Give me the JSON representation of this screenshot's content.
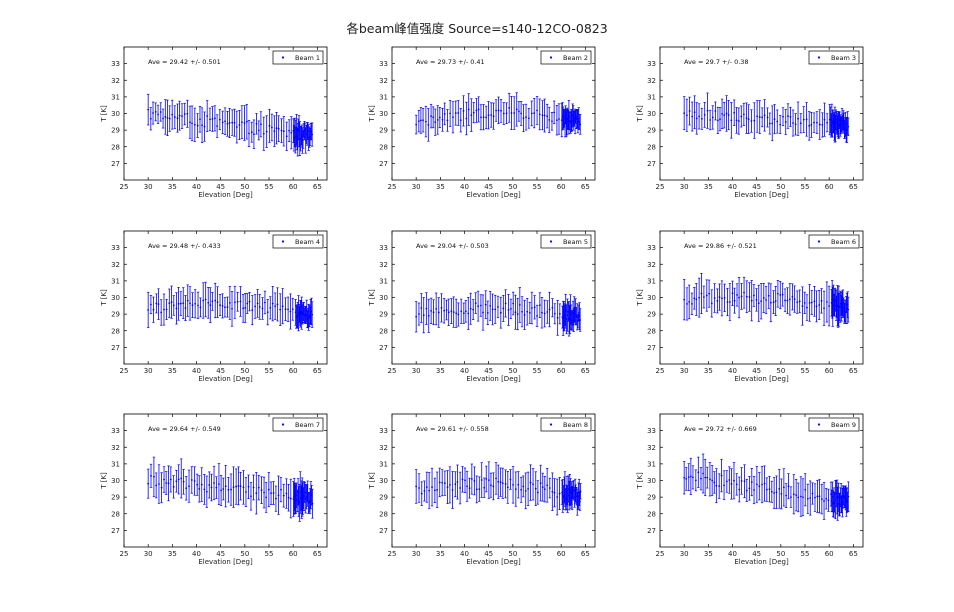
{
  "figure": {
    "title": "各beam峰值强度 Source=s140-12CO-0823"
  },
  "colors": {
    "series": "#0000ff",
    "axis": "#000000",
    "background": "#ffffff"
  },
  "chart_data": [
    {
      "type": "scatter",
      "series": [
        {
          "name": "Beam 1"
        }
      ],
      "annotation": "Ave = 29.42 +/- 0.501",
      "xlabel": "Elevation [Deg]",
      "ylabel": "T [K]",
      "xlim": [
        25,
        67
      ],
      "ylim": [
        26,
        34
      ],
      "xticks": [
        25,
        30,
        35,
        40,
        45,
        50,
        55,
        60,
        65
      ],
      "yticks": [
        27,
        28,
        29,
        30,
        31,
        32,
        33
      ],
      "grid": false,
      "legend": "top-right",
      "error_bars": true,
      "elevation_range": [
        30,
        64
      ],
      "start_mean": 30.0,
      "end_mean": 28.6,
      "bump": 0.0,
      "scatter": 0.35,
      "err": 0.9
    },
    {
      "type": "scatter",
      "series": [
        {
          "name": "Beam 2"
        }
      ],
      "annotation": "Ave = 29.73 +/- 0.41",
      "xlabel": "Elevation [Deg]",
      "ylabel": "T [K]",
      "xlim": [
        25,
        67
      ],
      "ylim": [
        26,
        34
      ],
      "xticks": [
        25,
        30,
        35,
        40,
        45,
        50,
        55,
        60,
        65
      ],
      "yticks": [
        27,
        28,
        29,
        30,
        31,
        32,
        33
      ],
      "grid": false,
      "legend": "top-right",
      "error_bars": true,
      "elevation_range": [
        30,
        64
      ],
      "start_mean": 29.4,
      "end_mean": 29.5,
      "bump": 0.6,
      "scatter": 0.3,
      "err": 0.85
    },
    {
      "type": "scatter",
      "series": [
        {
          "name": "Beam 3"
        }
      ],
      "annotation": "Ave = 29.7 +/- 0.38",
      "xlabel": "Elevation [Deg]",
      "ylabel": "T [K]",
      "xlim": [
        25,
        67
      ],
      "ylim": [
        26,
        34
      ],
      "xticks": [
        25,
        30,
        35,
        40,
        45,
        50,
        55,
        60,
        65
      ],
      "yticks": [
        27,
        28,
        29,
        30,
        31,
        32,
        33
      ],
      "grid": false,
      "legend": "top-right",
      "error_bars": true,
      "elevation_range": [
        30,
        64
      ],
      "start_mean": 30.0,
      "end_mean": 29.3,
      "bump": 0.0,
      "scatter": 0.3,
      "err": 0.9
    },
    {
      "type": "scatter",
      "series": [
        {
          "name": "Beam 4"
        }
      ],
      "annotation": "Ave = 29.48 +/- 0.433",
      "xlabel": "Elevation [Deg]",
      "ylabel": "T [K]",
      "xlim": [
        25,
        67
      ],
      "ylim": [
        26,
        34
      ],
      "xticks": [
        25,
        30,
        35,
        40,
        45,
        50,
        55,
        60,
        65
      ],
      "yticks": [
        27,
        28,
        29,
        30,
        31,
        32,
        33
      ],
      "grid": false,
      "legend": "top-right",
      "error_bars": true,
      "elevation_range": [
        30,
        64
      ],
      "start_mean": 29.3,
      "end_mean": 28.9,
      "bump": 0.5,
      "scatter": 0.3,
      "err": 0.9
    },
    {
      "type": "scatter",
      "series": [
        {
          "name": "Beam 5"
        }
      ],
      "annotation": "Ave = 29.04 +/- 0.503",
      "xlabel": "Elevation [Deg]",
      "ylabel": "T [K]",
      "xlim": [
        25,
        67
      ],
      "ylim": [
        26,
        34
      ],
      "xticks": [
        25,
        30,
        35,
        40,
        45,
        50,
        55,
        60,
        65
      ],
      "yticks": [
        27,
        28,
        29,
        30,
        31,
        32,
        33
      ],
      "grid": false,
      "legend": "top-right",
      "error_bars": true,
      "elevation_range": [
        30,
        64
      ],
      "start_mean": 29.0,
      "end_mean": 28.9,
      "bump": 0.4,
      "scatter": 0.35,
      "err": 0.9
    },
    {
      "type": "scatter",
      "series": [
        {
          "name": "Beam 6"
        }
      ],
      "annotation": "Ave = 29.86 +/- 0.521",
      "xlabel": "Elevation [Deg]",
      "ylabel": "T [K]",
      "xlim": [
        25,
        67
      ],
      "ylim": [
        26,
        34
      ],
      "xticks": [
        25,
        30,
        35,
        40,
        45,
        50,
        55,
        60,
        65
      ],
      "yticks": [
        27,
        28,
        29,
        30,
        31,
        32,
        33
      ],
      "grid": false,
      "legend": "top-right",
      "error_bars": true,
      "elevation_range": [
        30,
        64
      ],
      "start_mean": 29.9,
      "end_mean": 29.4,
      "bump": 0.3,
      "scatter": 0.35,
      "err": 1.05
    },
    {
      "type": "scatter",
      "series": [
        {
          "name": "Beam 7"
        }
      ],
      "annotation": "Ave = 29.64 +/- 0.549",
      "xlabel": "Elevation [Deg]",
      "ylabel": "T [K]",
      "xlim": [
        25,
        67
      ],
      "ylim": [
        26,
        34
      ],
      "xticks": [
        25,
        30,
        35,
        40,
        45,
        50,
        55,
        60,
        65
      ],
      "yticks": [
        27,
        28,
        29,
        30,
        31,
        32,
        33
      ],
      "grid": false,
      "legend": "top-right",
      "error_bars": true,
      "elevation_range": [
        30,
        64
      ],
      "start_mean": 30.0,
      "end_mean": 28.9,
      "bump": 0.0,
      "scatter": 0.35,
      "err": 1.05
    },
    {
      "type": "scatter",
      "series": [
        {
          "name": "Beam 8"
        }
      ],
      "annotation": "Ave = 29.61 +/- 0.558",
      "xlabel": "Elevation [Deg]",
      "ylabel": "T [K]",
      "xlim": [
        25,
        67
      ],
      "ylim": [
        26,
        34
      ],
      "xticks": [
        25,
        30,
        35,
        40,
        45,
        50,
        55,
        60,
        65
      ],
      "yticks": [
        27,
        28,
        29,
        30,
        31,
        32,
        33
      ],
      "grid": false,
      "legend": "top-right",
      "error_bars": true,
      "elevation_range": [
        30,
        64
      ],
      "start_mean": 29.4,
      "end_mean": 29.0,
      "bump": 0.6,
      "scatter": 0.35,
      "err": 0.95
    },
    {
      "type": "scatter",
      "series": [
        {
          "name": "Beam 9"
        }
      ],
      "annotation": "Ave = 29.72 +/- 0.669",
      "xlabel": "Elevation [Deg]",
      "ylabel": "T [K]",
      "xlim": [
        25,
        67
      ],
      "ylim": [
        26,
        34
      ],
      "xticks": [
        25,
        30,
        35,
        40,
        45,
        50,
        55,
        60,
        65
      ],
      "yticks": [
        27,
        28,
        29,
        30,
        31,
        32,
        33
      ],
      "grid": false,
      "legend": "top-right",
      "error_bars": true,
      "elevation_range": [
        30,
        64
      ],
      "start_mean": 30.3,
      "end_mean": 28.8,
      "bump": 0.0,
      "scatter": 0.35,
      "err": 1.0
    }
  ]
}
